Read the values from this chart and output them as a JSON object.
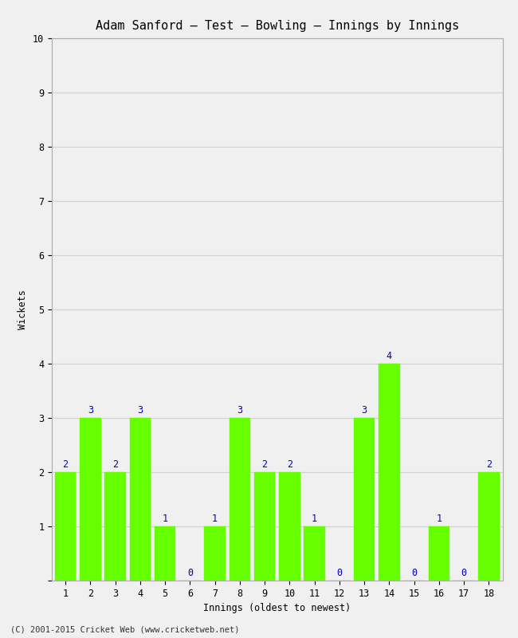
{
  "title": "Adam Sanford – Test – Bowling – Innings by Innings",
  "xlabel": "Innings (oldest to newest)",
  "ylabel": "Wickets",
  "categories": [
    "1",
    "2",
    "3",
    "4",
    "5",
    "6",
    "7",
    "8",
    "9",
    "10",
    "11",
    "12",
    "13",
    "14",
    "15",
    "16",
    "17",
    "18"
  ],
  "values": [
    2,
    3,
    2,
    3,
    1,
    0,
    1,
    3,
    2,
    2,
    1,
    0,
    3,
    4,
    0,
    1,
    0,
    2
  ],
  "bar_color": "#66ff00",
  "bar_edge_color": "#66ff00",
  "annotation_color": "#0000cc",
  "ylim": [
    0,
    10
  ],
  "yticks": [
    0,
    1,
    2,
    3,
    4,
    5,
    6,
    7,
    8,
    9,
    10
  ],
  "title_fontsize": 11,
  "axis_label_fontsize": 8.5,
  "tick_fontsize": 8.5,
  "annotation_fontsize": 8.5,
  "background_color": "#f0f0f0",
  "plot_bg_color": "#f0f0f0",
  "grid_color": "#d0d0d0",
  "footer": "(C) 2001-2015 Cricket Web (www.cricketweb.net)",
  "footer_fontsize": 7.5
}
